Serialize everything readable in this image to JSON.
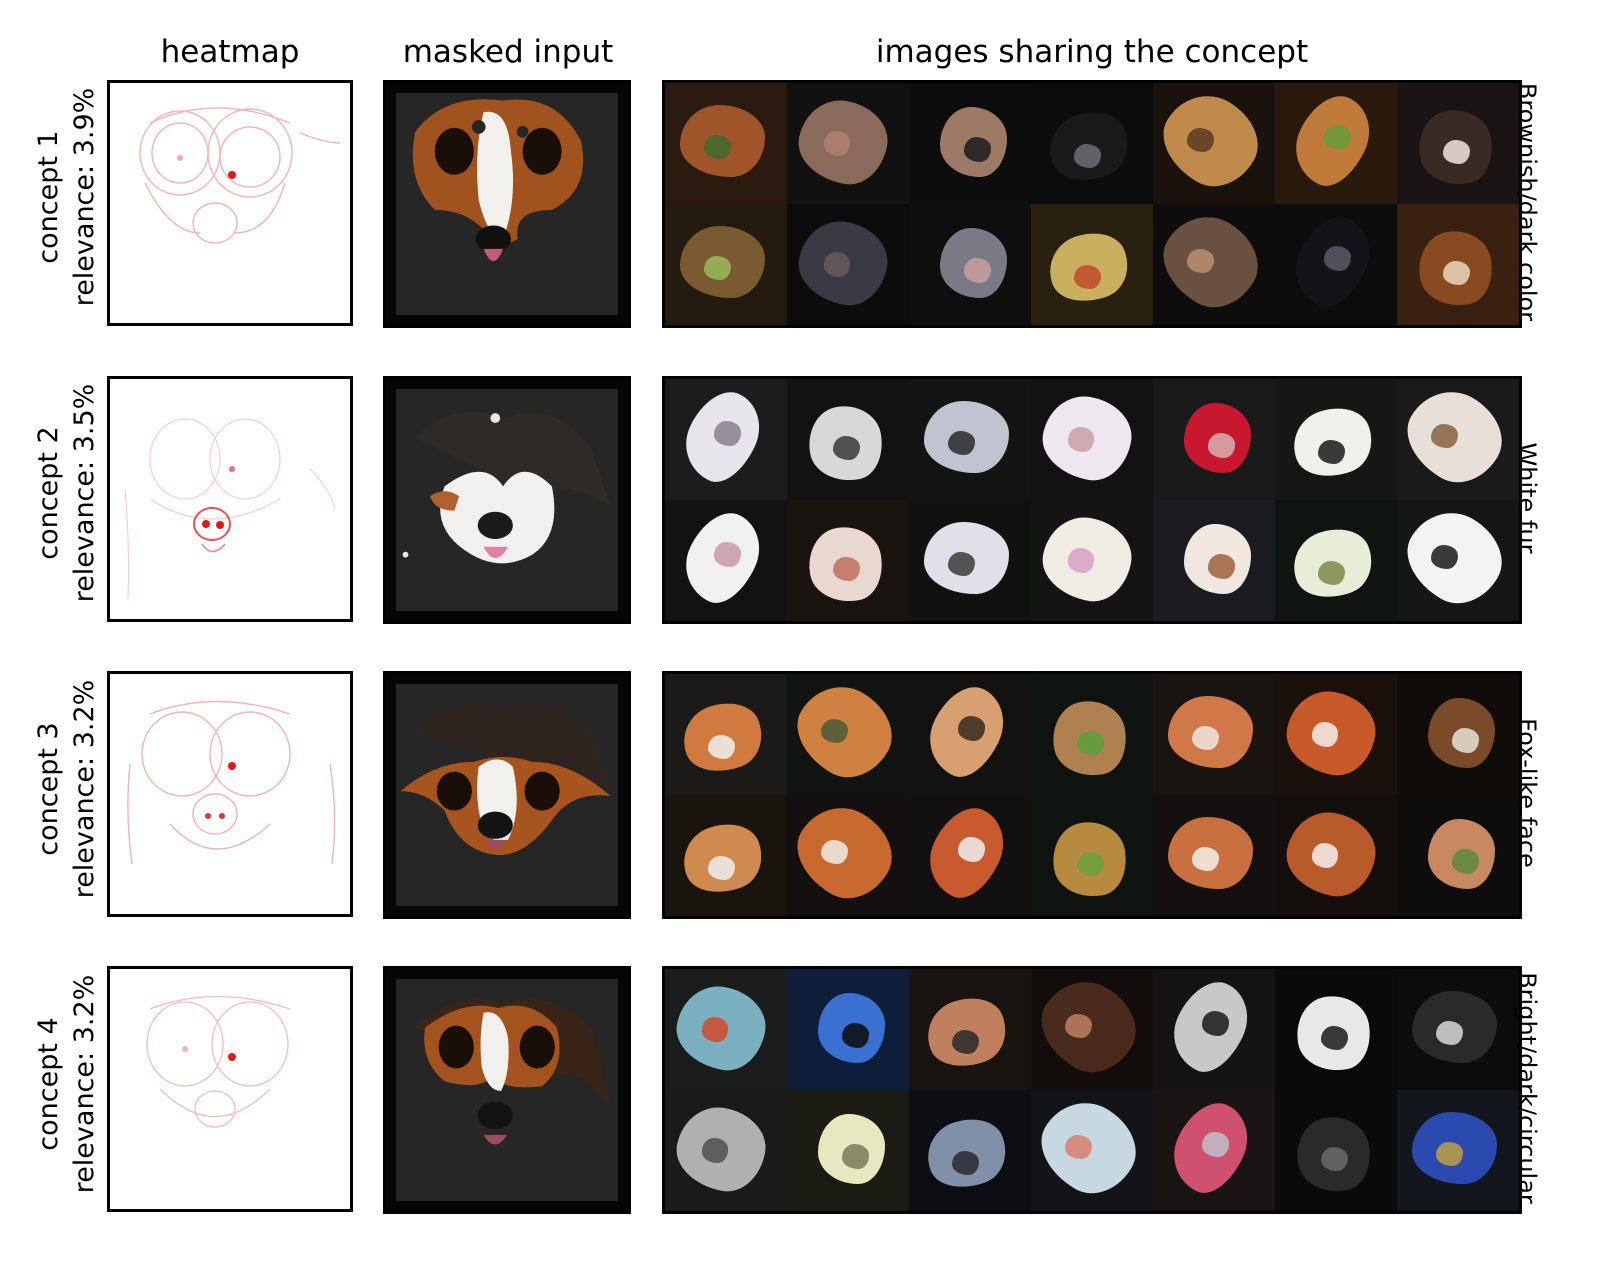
{
  "headers": {
    "heatmap": "heatmap",
    "masked_input": "masked input",
    "images": "images sharing the concept"
  },
  "concepts": [
    {
      "name": "concept 1",
      "relevance": "relevance: 3.9%",
      "description": "Brownish/dark color",
      "tiles": [
        {
          "bg": "#2a1a10",
          "fg": "#a0542a",
          "accent": "#3f6b2a"
        },
        {
          "bg": "#111111",
          "fg": "#8a6a5a",
          "accent": "#b08070"
        },
        {
          "bg": "#0d0d0d",
          "fg": "#9c7a66",
          "accent": "#1c1c1c"
        },
        {
          "bg": "#0c0c0c",
          "fg": "#1a1a1a",
          "accent": "#6e6e78"
        },
        {
          "bg": "#1a120c",
          "fg": "#c08a4a",
          "accent": "#5a3a1e"
        },
        {
          "bg": "#2a1a0e",
          "fg": "#c07a3a",
          "accent": "#6a9a3a"
        },
        {
          "bg": "#1a1414",
          "fg": "#3a2a24",
          "accent": "#f0e8e0"
        },
        {
          "bg": "#241a10",
          "fg": "#7a5a30",
          "accent": "#9aba5a"
        },
        {
          "bg": "#0c0c0c",
          "fg": "#3a3a44",
          "accent": "#6a5a5a"
        },
        {
          "bg": "#0e0e0e",
          "fg": "#7a7a86",
          "accent": "#c8a0a0"
        },
        {
          "bg": "#2a2010",
          "fg": "#c8b060",
          "accent": "#c04a2a"
        },
        {
          "bg": "#0e0c0c",
          "fg": "#6a5040",
          "accent": "#b89070"
        },
        {
          "bg": "#0c0c0e",
          "fg": "#141418",
          "accent": "#5a5a6a"
        },
        {
          "bg": "#3a2010",
          "fg": "#8a4a20",
          "accent": "#e8d8c0"
        }
      ]
    },
    {
      "name": "concept 2",
      "relevance": "relevance: 3.5%",
      "description": "White fur",
      "tiles": [
        {
          "bg": "#1c1c1c",
          "fg": "#e8e4ec",
          "accent": "#8a8090"
        },
        {
          "bg": "#121212",
          "fg": "#d8d8d8",
          "accent": "#3a3a3a"
        },
        {
          "bg": "#141414",
          "fg": "#c0c4d0",
          "accent": "#2a2a2a"
        },
        {
          "bg": "#121212",
          "fg": "#eee8ee",
          "accent": "#c8a0a8"
        },
        {
          "bg": "#1a1a1a",
          "fg": "#c81830",
          "accent": "#d8b0b0"
        },
        {
          "bg": "#161616",
          "fg": "#f0f0ea",
          "accent": "#1a1a1a"
        },
        {
          "bg": "#1a1a1a",
          "fg": "#e8e0d8",
          "accent": "#8a6040"
        },
        {
          "bg": "#121212",
          "fg": "#f0f0f0",
          "accent": "#c898a8"
        },
        {
          "bg": "#1a1410",
          "fg": "#e8d8d0",
          "accent": "#c07060"
        },
        {
          "bg": "#101210",
          "fg": "#e0e0e8",
          "accent": "#3a3a3a"
        },
        {
          "bg": "#141414",
          "fg": "#f0ece4",
          "accent": "#d8a0c8"
        },
        {
          "bg": "#1c1c20",
          "fg": "#f0e8e0",
          "accent": "#a06040"
        },
        {
          "bg": "#101410",
          "fg": "#e8ecd8",
          "accent": "#7a8a4a"
        },
        {
          "bg": "#161616",
          "fg": "#f4f2f4",
          "accent": "#1a1a1a"
        }
      ]
    },
    {
      "name": "concept 3",
      "relevance": "relevance: 3.2%",
      "description": "Fox-like face",
      "tiles": [
        {
          "bg": "#1c1a18",
          "fg": "#d07a40",
          "accent": "#f0f0f0"
        },
        {
          "bg": "#121412",
          "fg": "#d08040",
          "accent": "#4a5a3a"
        },
        {
          "bg": "#141210",
          "fg": "#d8a070",
          "accent": "#3a2a20"
        },
        {
          "bg": "#101410",
          "fg": "#b08050",
          "accent": "#5aa03a"
        },
        {
          "bg": "#1a1410",
          "fg": "#d07848",
          "accent": "#f0e8e0"
        },
        {
          "bg": "#1a100c",
          "fg": "#c85a2a",
          "accent": "#f4f0ec"
        },
        {
          "bg": "#100c0a",
          "fg": "#7a4a2a",
          "accent": "#e8e0d8"
        },
        {
          "bg": "#1a140e",
          "fg": "#d08a50",
          "accent": "#eeeeee"
        },
        {
          "bg": "#141010",
          "fg": "#c86a30",
          "accent": "#f0ece8"
        },
        {
          "bg": "#121010",
          "fg": "#c85a30",
          "accent": "#f0f0f0"
        },
        {
          "bg": "#101410",
          "fg": "#b88a40",
          "accent": "#6aa03a"
        },
        {
          "bg": "#141010",
          "fg": "#c87040",
          "accent": "#f4f0ea"
        },
        {
          "bg": "#140e0c",
          "fg": "#b85a2a",
          "accent": "#f4f0ec"
        },
        {
          "bg": "#0e0c0c",
          "fg": "#c88860",
          "accent": "#5a8a3a"
        }
      ]
    },
    {
      "name": "concept 4",
      "relevance": "relevance: 3.2%",
      "description": "Bright/dark/circular",
      "tiles": [
        {
          "bg": "#1a1c1e",
          "fg": "#7ab0c0",
          "accent": "#d04a2a"
        },
        {
          "bg": "#0e1e3a",
          "fg": "#3a70d0",
          "accent": "#0a0a0a"
        },
        {
          "bg": "#1a1410",
          "fg": "#c08060",
          "accent": "#2a2a2a"
        },
        {
          "bg": "#120c0a",
          "fg": "#4a2a1c",
          "accent": "#c08060"
        },
        {
          "bg": "#141414",
          "fg": "#c8c8c8",
          "accent": "#1a1a1a"
        },
        {
          "bg": "#0a0a0a",
          "fg": "#e8e8e8",
          "accent": "#1a1a1a"
        },
        {
          "bg": "#0c0c0c",
          "fg": "#2a2a2a",
          "accent": "#d8d8d8"
        },
        {
          "bg": "#1a1a1a",
          "fg": "#b0b0b0",
          "accent": "#505050"
        },
        {
          "bg": "#1a1c14",
          "fg": "#e8e8c0",
          "accent": "#7a7a5a"
        },
        {
          "bg": "#0c0e14",
          "fg": "#8090a8",
          "accent": "#2a2a30"
        },
        {
          "bg": "#121418",
          "fg": "#c8d8e0",
          "accent": "#d88070"
        },
        {
          "bg": "#1a1414",
          "fg": "#d05070",
          "accent": "#c0c0c8"
        },
        {
          "bg": "#0a0a0a",
          "fg": "#2a2a2a",
          "accent": "#6a6a6a"
        },
        {
          "bg": "#14161e",
          "fg": "#2a4ab0",
          "accent": "#c0a040"
        }
      ]
    }
  ]
}
